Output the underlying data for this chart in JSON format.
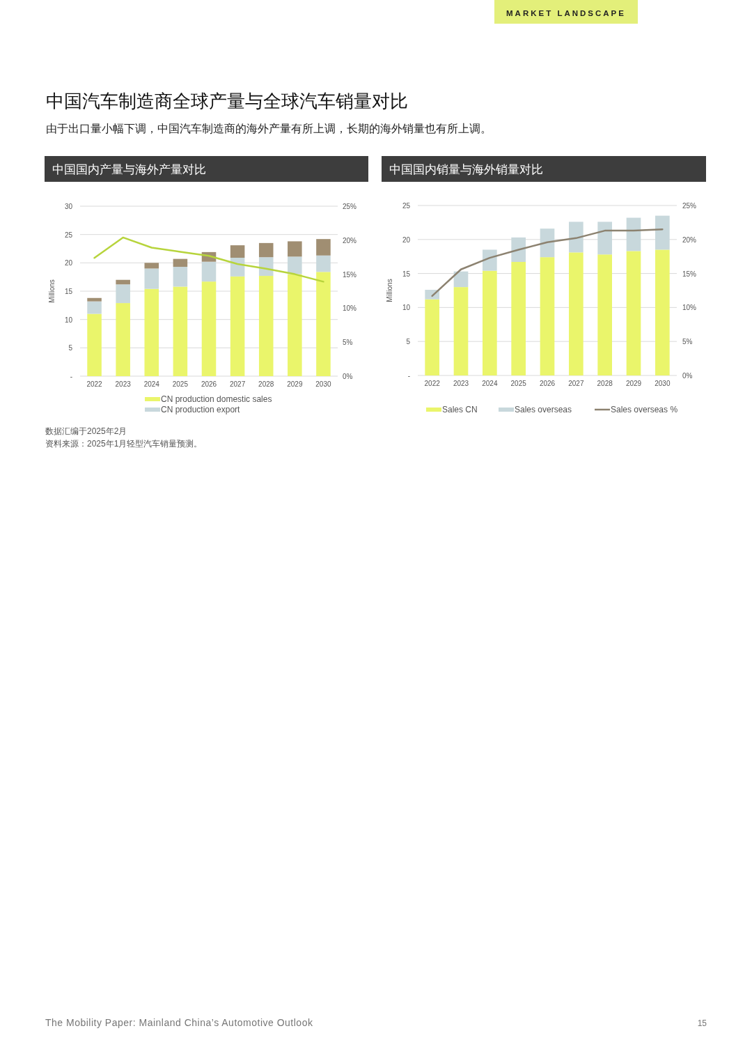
{
  "chart_data": [
    {
      "type": "bar",
      "title": "中国国内产量与海外产量对比",
      "ylabel": "Millions",
      "stacked": true,
      "grid": "y",
      "legend": "bottom",
      "categories": [
        "2022",
        "2023",
        "2024",
        "2025",
        "2026",
        "2027",
        "2028",
        "2029",
        "2030"
      ],
      "ylim": [
        0,
        30
      ],
      "yticks": [
        {
          "value": 0,
          "label": "-"
        },
        5,
        10,
        15,
        20,
        25,
        30
      ],
      "y2lim": [
        0,
        25
      ],
      "y2ticks": [
        {
          "value": 0,
          "label": "0%"
        },
        {
          "value": 5,
          "label": "5%"
        },
        {
          "value": 10,
          "label": "10%"
        },
        {
          "value": 15,
          "label": "15%"
        },
        {
          "value": 20,
          "label": "20%"
        },
        {
          "value": 25,
          "label": "25%"
        }
      ],
      "series": [
        {
          "name": "CN production domestic sales",
          "color": "#eaf56b",
          "values": [
            11.0,
            12.9,
            15.4,
            15.8,
            16.7,
            17.6,
            17.7,
            18.0,
            18.4
          ]
        },
        {
          "name": "CN production export",
          "color": "#c8d8dc",
          "values": [
            2.2,
            3.3,
            3.6,
            3.5,
            3.5,
            3.3,
            3.3,
            3.1,
            2.9
          ]
        },
        {
          "color": "#a08e72",
          "values": [
            0.6,
            0.8,
            1.0,
            1.4,
            1.7,
            2.2,
            2.5,
            2.7,
            2.9
          ]
        },
        {
          "type": "line",
          "axis": "y2",
          "color": "#b7d43c",
          "values": [
            17.4,
            20.4,
            18.9,
            18.3,
            17.7,
            16.5,
            15.8,
            15.0,
            13.9
          ]
        }
      ],
      "annotations": [
        "MARKET LANDSCAPE",
        "中国汽车制造商全球产量与全球汽车销量对比",
        "由于出口量小幅下调，中国汽车制造商的海外产量有所上调，长期的海外销量也有所上调。",
        "数据汇编于2025年2月",
        "资料来源：2025年1月轻型汽车销量预测。",
        "The Mobility Paper: Mainland China’s Automotive Outlook",
        "15"
      ]
    },
    {
      "type": "bar",
      "title": "中国国内销量与海外销量对比",
      "ylabel": "Millions",
      "stacked": true,
      "grid": "y",
      "legend": "bottom",
      "categories": [
        "2022",
        "2023",
        "2024",
        "2025",
        "2026",
        "2027",
        "2028",
        "2029",
        "2030"
      ],
      "ylim": [
        0,
        25
      ],
      "yticks": [
        {
          "value": 0,
          "label": "-"
        },
        5,
        10,
        15,
        20,
        25
      ],
      "y2lim": [
        0,
        25
      ],
      "y2ticks": [
        {
          "value": 0,
          "label": "0%"
        },
        {
          "value": 5,
          "label": "5%"
        },
        {
          "value": 10,
          "label": "10%"
        },
        {
          "value": 15,
          "label": "15%"
        },
        {
          "value": 20,
          "label": "20%"
        },
        {
          "value": 25,
          "label": "25%"
        }
      ],
      "series": [
        {
          "name": "Sales CN",
          "color": "#eaf56b",
          "values": [
            11.2,
            13.0,
            15.4,
            16.7,
            17.4,
            18.1,
            17.8,
            18.3,
            18.5
          ]
        },
        {
          "name": "Sales overseas",
          "color": "#c8d8dc",
          "values": [
            1.4,
            2.3,
            3.1,
            3.6,
            4.2,
            4.5,
            4.8,
            4.9,
            5.0
          ]
        },
        {
          "name": "Sales overseas %",
          "type": "line",
          "axis": "y2",
          "color": "#8c8270",
          "values": [
            11.7,
            15.6,
            17.3,
            18.5,
            19.6,
            20.2,
            21.3,
            21.3,
            21.5
          ]
        }
      ]
    }
  ]
}
